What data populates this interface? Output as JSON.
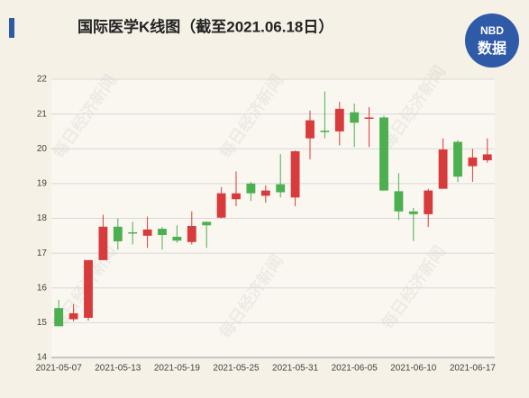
{
  "chart_data": {
    "type": "candlestick",
    "title": "国际医学K线图（截至2021.06.18日）",
    "categories": [
      "2021-05-07",
      null,
      null,
      null,
      "2021-05-13",
      null,
      null,
      null,
      "2021-05-19",
      null,
      null,
      null,
      "2021-05-25",
      null,
      null,
      null,
      "2021-05-31",
      null,
      null,
      null,
      "2021-06-05",
      null,
      null,
      null,
      "2021-06-10",
      null,
      null,
      null,
      "2021-06-17",
      null
    ],
    "open": [
      15.42,
      15.1,
      15.14,
      16.8,
      17.76,
      17.6,
      17.5,
      17.7,
      17.47,
      17.32,
      17.9,
      18.02,
      18.55,
      19.0,
      18.65,
      18.98,
      18.6,
      20.3,
      20.52,
      20.5,
      21.05,
      20.88,
      20.9,
      18.78,
      18.2,
      18.12,
      18.85,
      20.2,
      19.5,
      19.67
    ],
    "high": [
      15.66,
      15.53,
      16.8,
      18.1,
      18.0,
      17.9,
      18.05,
      17.75,
      17.8,
      18.2,
      17.9,
      18.9,
      19.35,
      19.05,
      18.95,
      19.85,
      19.95,
      21.1,
      21.65,
      21.35,
      21.3,
      21.2,
      20.95,
      19.3,
      18.3,
      18.85,
      20.3,
      20.25,
      20.0,
      20.3
    ],
    "low": [
      14.9,
      15.04,
      15.06,
      16.8,
      17.1,
      17.25,
      17.15,
      17.1,
      17.3,
      17.25,
      17.15,
      18.0,
      18.35,
      18.5,
      18.45,
      18.6,
      18.35,
      19.7,
      20.3,
      20.1,
      20.05,
      20.05,
      18.8,
      17.95,
      17.35,
      17.75,
      18.85,
      19.05,
      19.05,
      19.6
    ],
    "close": [
      14.9,
      15.27,
      16.8,
      17.76,
      17.34,
      17.58,
      17.68,
      17.52,
      17.36,
      17.78,
      17.8,
      18.72,
      18.72,
      18.72,
      18.8,
      18.75,
      19.93,
      20.82,
      20.48,
      21.15,
      20.75,
      20.9,
      18.8,
      18.2,
      18.12,
      18.8,
      19.98,
      19.2,
      19.75,
      19.84
    ],
    "up_color": "#d83b3b",
    "down_color": "#4caf50",
    "ylim": [
      14,
      22
    ],
    "yticks": [
      14,
      15,
      16,
      17,
      18,
      19,
      20,
      21,
      22
    ],
    "grid": true
  },
  "logo": {
    "line1": "NBD",
    "line2": "数据"
  },
  "watermark": "每日经济新闻"
}
